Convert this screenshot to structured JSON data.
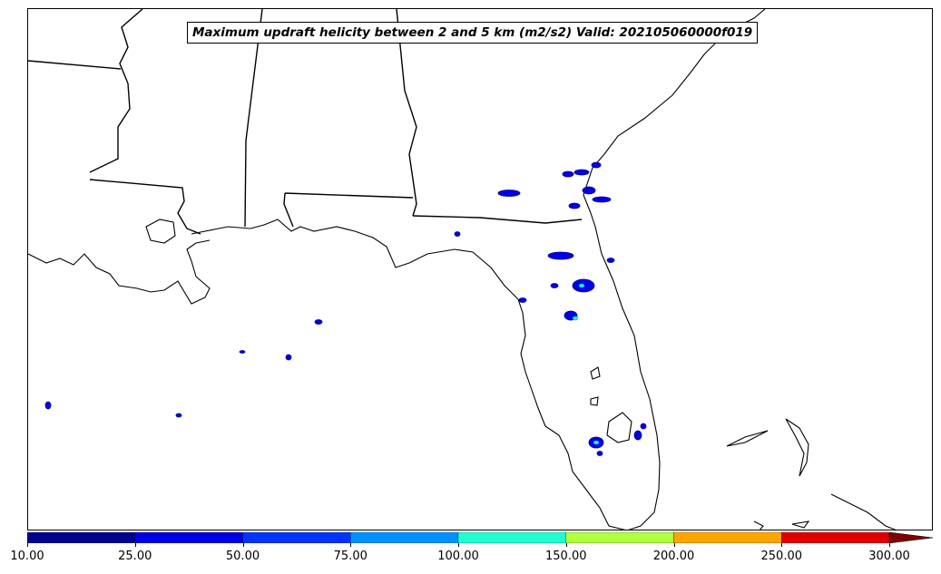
{
  "title": "Maximum updraft helicity between 2 and 5 km (m2/s2) Valid: 202105060000f019",
  "colorbar": {
    "ticks": [
      "10.00",
      "25.00",
      "50.00",
      "75.00",
      "100.00",
      "150.00",
      "200.00",
      "250.00",
      "300.00"
    ],
    "colors": [
      "#00008f",
      "#0000e6",
      "#0033ff",
      "#0090ff",
      "#20ffd0",
      "#b0ff40",
      "#ffa500",
      "#e00000"
    ],
    "extend_color": "#800000"
  },
  "colors": {
    "coast": "#000000",
    "state_border": "#000000",
    "background": "#ffffff"
  }
}
